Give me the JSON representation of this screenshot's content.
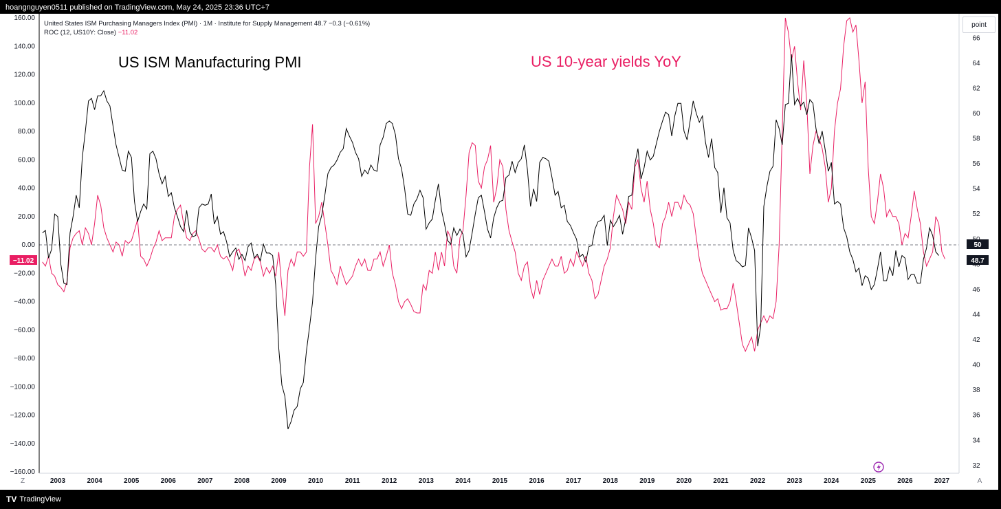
{
  "header": {
    "published": "hoangnguyen0511 published on TradingView.com, May 24, 2025 23:36 UTC+7"
  },
  "footer": {
    "brand": "TradingView",
    "logo": "TV"
  },
  "legend": {
    "line1": "United States ISM Purchasing Managers Index (PMI) · 1M · Institute for Supply Management  48.7  −0.3 (−0.61%)",
    "line2_label": "ROC (12, US10Y: Close)",
    "line2_value": "−11.02"
  },
  "annotations": {
    "black": "US ISM Manufacturing PMI",
    "pink": "US 10-year yields YoY"
  },
  "scale_buttons": {
    "left": "Z",
    "right": "A",
    "unit": "point"
  },
  "price_tags": {
    "roc_tag": "−11.02",
    "pmi_tag": "48.7",
    "level_tag": "50"
  },
  "colors": {
    "pmi": "#000000",
    "roc": "#e91e63",
    "tag_dark": "#131722"
  },
  "icons": {
    "flash": "lightning-icon",
    "logo": "tradingview-logo-icon"
  },
  "chart_data": {
    "type": "line",
    "x_start": "2002-08",
    "x_end": "2025-04",
    "x_ticks": [
      "2003",
      "2004",
      "2005",
      "2006",
      "2007",
      "2008",
      "2009",
      "2010",
      "2011",
      "2012",
      "2013",
      "2014",
      "2015",
      "2016",
      "2017",
      "2018",
      "2019",
      "2020",
      "2021",
      "2022",
      "2023",
      "2024",
      "2025",
      "2026",
      "2027"
    ],
    "y_left_ticks": [
      "160.00",
      "140.00",
      "120.00",
      "100.00",
      "80.00",
      "60.00",
      "40.00",
      "20.00",
      "0.00",
      "−20.00",
      "−40.00",
      "−60.00",
      "−80.00",
      "−100.00",
      "−120.00",
      "−140.00",
      "−160.00"
    ],
    "y_left_range": [
      -160,
      160
    ],
    "y_right_ticks": [
      "66",
      "64",
      "62",
      "60",
      "58",
      "56",
      "54",
      "52",
      "50",
      "48",
      "46",
      "44",
      "42",
      "40",
      "38",
      "36",
      "34",
      "32"
    ],
    "y_right_range": [
      31.5,
      67.6
    ],
    "reference_line": 0,
    "series": [
      {
        "name": "United States ISM Purchasing Managers Index (PMI)",
        "axis": "right",
        "values": [
          50.5,
          50.7,
          48.5,
          49.2,
          52.0,
          51.8,
          48.0,
          46.5,
          46.4,
          50.5,
          51.8,
          53.5,
          52.5,
          56.5,
          58.6,
          61.0,
          61.2,
          60.3,
          61.4,
          61.4,
          61.8,
          61.0,
          60.6,
          59.0,
          57.5,
          56.5,
          55.5,
          55.4,
          57.0,
          56.5,
          53.0,
          51.4,
          52.2,
          52.8,
          52.4,
          56.8,
          57.0,
          56.4,
          55.2,
          54.4,
          55.0,
          53.4,
          53.7,
          52.5,
          51.8,
          51.0,
          50.6,
          52.3,
          50.6,
          50.2,
          50.3,
          52.5,
          52.8,
          52.7,
          52.8,
          53.6,
          51.2,
          51.8,
          50.4,
          50.6,
          49.8,
          48.6,
          49.0,
          49.3,
          48.4,
          48.8,
          48.3,
          49.4,
          49.7,
          48.5,
          48.8,
          48.3,
          49.6,
          48.9,
          48.9,
          48.7,
          46.4,
          41.3,
          38.4,
          37.5,
          34.9,
          35.5,
          36.4,
          36.7,
          38.1,
          38.6,
          41.1,
          43.0,
          45.0,
          48.5,
          51.0,
          51.9,
          53.5,
          55.2,
          55.7,
          55.9,
          56.3,
          56.9,
          57.2,
          58.8,
          58.2,
          57.7,
          56.9,
          56.4,
          55.0,
          55.5,
          55.2,
          55.9,
          55.5,
          55.4,
          57.5,
          58.1,
          59.2,
          59.4,
          59.2,
          58.3,
          56.4,
          55.6,
          54.0,
          52.0,
          51.9,
          52.8,
          53.2,
          53.9,
          53.3,
          50.8,
          51.3,
          51.6,
          53.1,
          54.4,
          52.3,
          51.2,
          49.9,
          49.6,
          50.9,
          50.3,
          50.8,
          50.4,
          48.6,
          49.1,
          50.5,
          52.0,
          53.3,
          53.5,
          52.2,
          50.8,
          50.1,
          51.7,
          52.5,
          53.0,
          53.1,
          54.9,
          55.1,
          56.2,
          55.3,
          56.1,
          56.4,
          57.5,
          55.5,
          52.6,
          54.0,
          53.0,
          56.1,
          56.5,
          56.4,
          56.2,
          54.9,
          53.5,
          53.8,
          52.5,
          52.7,
          51.4,
          51.1,
          50.5,
          50.0,
          48.6,
          48.8,
          48.2,
          49.4,
          49.5,
          50.8,
          51.4,
          51.5,
          51.9,
          49.5,
          51.5,
          51.0,
          51.4,
          51.9,
          50.4,
          51.6,
          53.4,
          53.5,
          56.0,
          57.2,
          54.8,
          55.7,
          57.0,
          56.3,
          56.6,
          57.6,
          58.6,
          59.4,
          60.1,
          59.9,
          58.2,
          59.8,
          60.8,
          60.8,
          58.6,
          57.9,
          59.4,
          61.0,
          60.0,
          59.3,
          59.8,
          57.7,
          56.5,
          58.0,
          55.7,
          55.3,
          52.1,
          54.1,
          51.7,
          51.3,
          49.1,
          48.3,
          48.1,
          47.8,
          47.9,
          50.9,
          50.1,
          49.1,
          41.5,
          43.1,
          52.6,
          54.2,
          55.4,
          55.8,
          59.5,
          58.8,
          57.5,
          60.7,
          60.8,
          64.7,
          60.7,
          61.2,
          60.6,
          60.9,
          59.9,
          61.1,
          60.8,
          58.8,
          57.6,
          58.6,
          57.1,
          55.4,
          56.1,
          52.8,
          53.0,
          52.8,
          50.9,
          50.2,
          49.0,
          48.4,
          47.4,
          47.7,
          46.3,
          47.1,
          46.9,
          46.0,
          46.4,
          47.6,
          49.0,
          46.7,
          46.7,
          47.8,
          47.1,
          49.1,
          47.8,
          48.7,
          48.5,
          46.8,
          47.2,
          47.2,
          46.5,
          46.5,
          48.4,
          49.3,
          50.9,
          50.3,
          49.0,
          48.7
        ]
      },
      {
        "name": "ROC (12, US10Y: Close)",
        "axis": "left",
        "values": [
          -12,
          -15,
          -8,
          -20,
          -22,
          -28,
          -30,
          -33,
          -26,
          -2,
          5,
          8,
          10,
          0,
          12,
          8,
          0,
          15,
          35,
          28,
          12,
          5,
          0,
          -5,
          2,
          0,
          -8,
          3,
          1,
          3,
          10,
          18,
          -8,
          -10,
          -15,
          -10,
          -3,
          2,
          10,
          3,
          5,
          5,
          5,
          20,
          25,
          28,
          15,
          5,
          3,
          8,
          10,
          4,
          -3,
          -5,
          -2,
          -2,
          -5,
          0,
          -8,
          -10,
          -8,
          -12,
          -18,
          -5,
          -3,
          -10,
          -22,
          -15,
          -18,
          -10,
          -8,
          -12,
          -22,
          -16,
          -20,
          -15,
          -22,
          -5,
          -30,
          -50,
          -18,
          -10,
          -15,
          -5,
          -5,
          -8,
          -5,
          55,
          85,
          15,
          20,
          30,
          15,
          0,
          -18,
          -22,
          -28,
          -15,
          -22,
          -28,
          -25,
          -22,
          -15,
          -10,
          -15,
          -10,
          -18,
          -18,
          -10,
          -10,
          -5,
          -15,
          -8,
          0,
          -20,
          -28,
          -40,
          -45,
          -40,
          -38,
          -42,
          -47,
          -48,
          -48,
          -28,
          -32,
          -18,
          -20,
          -5,
          -18,
          -5,
          -15,
          10,
          5,
          -15,
          -20,
          5,
          10,
          35,
          65,
          72,
          70,
          45,
          40,
          55,
          60,
          70,
          30,
          40,
          60,
          55,
          25,
          10,
          2,
          -5,
          -20,
          -25,
          -15,
          -12,
          -30,
          -38,
          -25,
          -35,
          -25,
          -20,
          -15,
          -10,
          -15,
          -15,
          -8,
          -20,
          -18,
          -10,
          -15,
          -5,
          -10,
          -15,
          -8,
          -20,
          -25,
          -38,
          -35,
          -25,
          -15,
          -10,
          -2,
          20,
          35,
          30,
          25,
          15,
          30,
          25,
          55,
          60,
          40,
          30,
          45,
          25,
          15,
          0,
          -2,
          15,
          20,
          30,
          20,
          30,
          30,
          25,
          35,
          30,
          28,
          22,
          5,
          -10,
          -20,
          -25,
          -30,
          -35,
          -40,
          -38,
          -46,
          -45,
          -45,
          -40,
          -27,
          -40,
          -55,
          -70,
          -75,
          -70,
          -65,
          -75,
          -60,
          -55,
          -50,
          -55,
          -50,
          -52,
          -40,
          0,
          80,
          160,
          150,
          130,
          140,
          115,
          95,
          130,
          100,
          50,
          70,
          80,
          75,
          68,
          55,
          30,
          40,
          80,
          100,
          110,
          140,
          158,
          160,
          150,
          155,
          130,
          100,
          115,
          55,
          20,
          15,
          30,
          50,
          40,
          20,
          25,
          20,
          20,
          15,
          0,
          8,
          5,
          20,
          38,
          25,
          15,
          -5,
          -15,
          -10,
          -5,
          20,
          15,
          -5,
          -10
        ]
      }
    ]
  }
}
